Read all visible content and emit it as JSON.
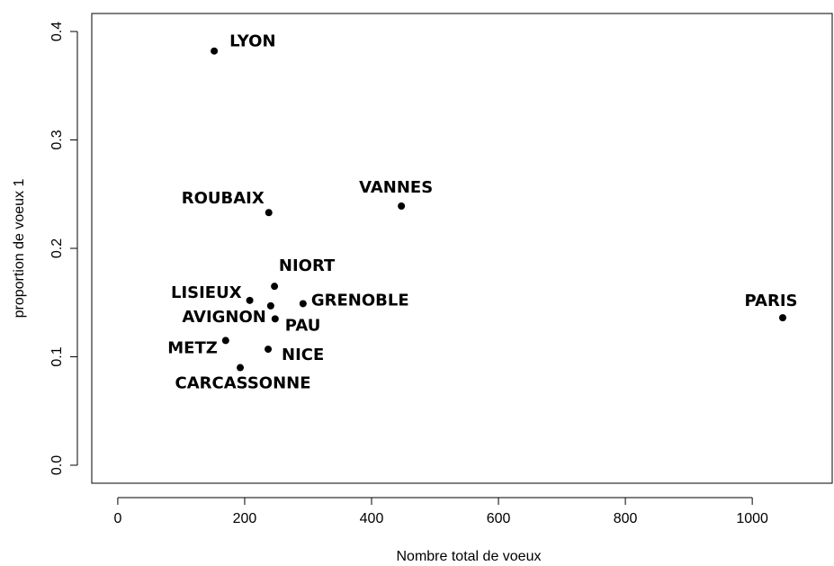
{
  "chart_data": {
    "type": "scatter",
    "xlabel": "Nombre total de voeux",
    "ylabel": "proportion de voeux 1",
    "labels": [
      "LYON",
      "ROUBAIX",
      "VANNES",
      "NIORT",
      "LISIEUX",
      "GRENOBLE",
      "AVIGNON",
      "PAU",
      "PARIS",
      "METZ",
      "NICE",
      "CARCASSONNE"
    ],
    "x": [
      152,
      238,
      447,
      247,
      208,
      292,
      241,
      248,
      1048,
      170,
      237,
      193
    ],
    "values": [
      0.382,
      0.233,
      0.239,
      0.165,
      0.152,
      0.149,
      0.147,
      0.135,
      0.136,
      0.115,
      0.107,
      0.09
    ],
    "color": "#000000",
    "xlim": [
      -41,
      1126
    ],
    "xticks": [
      0,
      200,
      400,
      600,
      800,
      1000
    ],
    "ylim": [
      -0.0166,
      0.4166
    ],
    "yticks": [
      {
        "value": 0,
        "label": "0.0"
      },
      0.1,
      0.2,
      0.3,
      0.4
    ]
  }
}
